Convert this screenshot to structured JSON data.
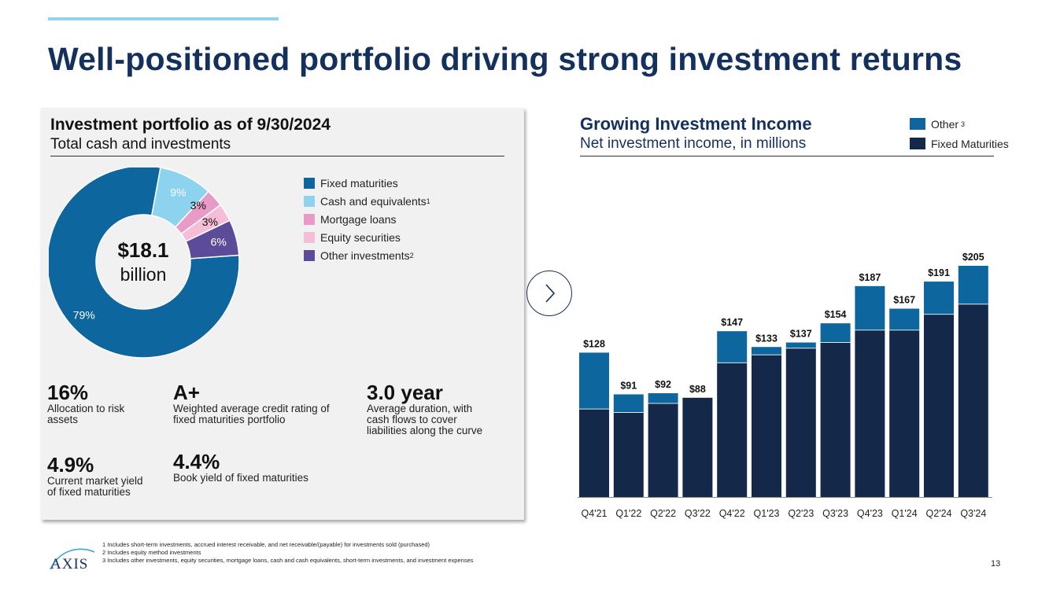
{
  "header": {
    "title": "Well-positioned portfolio driving strong investment returns"
  },
  "portfolio": {
    "title": "Investment portfolio as of 9/30/2024",
    "subtitle": "Total cash and investments",
    "center_value": "$18.1",
    "center_unit": "billion",
    "legend": [
      {
        "label": "Fixed maturities",
        "sup": "",
        "color": "#0d669e"
      },
      {
        "label": "Cash and equivalents",
        "sup": "1",
        "color": "#8dd3ef"
      },
      {
        "label": "Mortgage loans",
        "sup": "",
        "color": "#e89bc6"
      },
      {
        "label": "Equity securities",
        "sup": "",
        "color": "#f6bed6"
      },
      {
        "label": "Other investments",
        "sup": "2",
        "color": "#5c4b98"
      }
    ],
    "stats": {
      "risk_value": "16%",
      "risk_desc": "Allocation to risk\nassets",
      "rating_value": "A+",
      "rating_desc": "Weighted average credit rating of\nfixed maturities portfolio",
      "duration_value": "3.0 year",
      "duration_desc": "Average duration, with\ncash flows to cover\nliabilities along the curve",
      "yield_value": "4.9%",
      "yield_desc": "Current market yield\nof fixed maturities",
      "book_value": "4.4%",
      "book_desc": "Book yield of fixed maturities"
    }
  },
  "income": {
    "title": "Growing Investment Income",
    "subtitle": "Net investment income, in millions",
    "legend": [
      {
        "label": "Other",
        "sup": "3",
        "color": "#0d669e"
      },
      {
        "label": "Fixed Maturities",
        "sup": "",
        "color": "#14284a"
      }
    ]
  },
  "chart_data": [
    {
      "type": "pie",
      "title": "Investment portfolio as of 9/30/2024",
      "categories": [
        "Fixed maturities",
        "Cash and equivalents",
        "Mortgage loans",
        "Equity securities",
        "Other investments"
      ],
      "values": [
        79,
        9,
        3,
        3,
        6
      ],
      "labels": [
        "79%",
        "9%",
        "3%",
        "3%",
        "6%"
      ],
      "colors": [
        "#0d669e",
        "#8dd3ef",
        "#e89bc6",
        "#f6bed6",
        "#5c4b98"
      ]
    },
    {
      "type": "bar",
      "stacked": true,
      "title": "Growing Investment Income",
      "ylabel": "Net investment income, in millions",
      "categories": [
        "Q4'21",
        "Q1'22",
        "Q2'22",
        "Q3'22",
        "Q4'22",
        "Q1'23",
        "Q2'23",
        "Q3'23",
        "Q4'23",
        "Q1'24",
        "Q2'24",
        "Q3'24"
      ],
      "series": [
        {
          "name": "Fixed Maturities",
          "color": "#14284a",
          "values": [
            78,
            75,
            83,
            88,
            119,
            126,
            132,
            137,
            148,
            148,
            162,
            171
          ]
        },
        {
          "name": "Other",
          "color": "#0d669e",
          "values": [
            50,
            16,
            9,
            0,
            28,
            7,
            5,
            17,
            39,
            19,
            29,
            34
          ]
        }
      ],
      "totals": [
        "$128",
        "$91",
        "$92",
        "$88",
        "$147",
        "$133",
        "$137",
        "$154",
        "$187",
        "$167",
        "$191",
        "$205"
      ],
      "ylim": [
        0,
        215
      ]
    }
  ],
  "footer": {
    "logo_text": "AXIS",
    "footnotes": [
      "1  Includes short-term investments, accrued interest receivable, and net receivable/(payable) for investments sold (purchased)",
      "2  Includes equity method investments",
      "3  Includes other investments, equity securities, mortgage loans, cash and cash equivalents, short-term investments, and investment expenses"
    ],
    "page_number": "13"
  }
}
